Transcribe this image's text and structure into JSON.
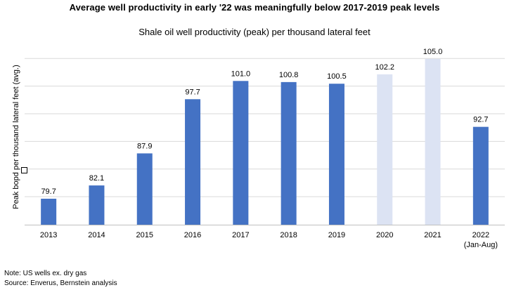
{
  "headline": "Average well productivity in early '22 was meaningfully below 2017-2019 peak levels",
  "notes": {
    "note": "Note: US wells ex. dry gas",
    "source": "Source: Enverus, Bernstein analysis"
  },
  "colors": {
    "bar_actual": "#4472C4",
    "bar_highlight": "#DCE3F3",
    "gridline": "#D9D9D9"
  },
  "chart_data": {
    "type": "bar",
    "title": "Shale oil well productivity (peak) per thousand lateral feet",
    "xlabel": "",
    "ylabel": "Peak bopd per thousand lateral feet (avg.)",
    "ylim": [
      75,
      106.5
    ],
    "grid": true,
    "categories": [
      "2013",
      "2014",
      "2015",
      "2016",
      "2017",
      "2018",
      "2019",
      "2020",
      "2021",
      "2022"
    ],
    "category_sublabels": [
      "",
      "",
      "",
      "",
      "",
      "",
      "",
      "",
      "",
      "(Jan-Aug)"
    ],
    "values": [
      79.7,
      82.1,
      87.9,
      97.7,
      101.0,
      100.8,
      100.5,
      102.2,
      105.0,
      92.7
    ],
    "data_labels": [
      "79.7",
      "82.1",
      "87.9",
      "97.7",
      "101.0",
      "100.8",
      "100.5",
      "102.2",
      "105.0",
      "92.7"
    ],
    "highlighted": [
      false,
      false,
      false,
      false,
      false,
      false,
      false,
      true,
      true,
      false
    ]
  }
}
